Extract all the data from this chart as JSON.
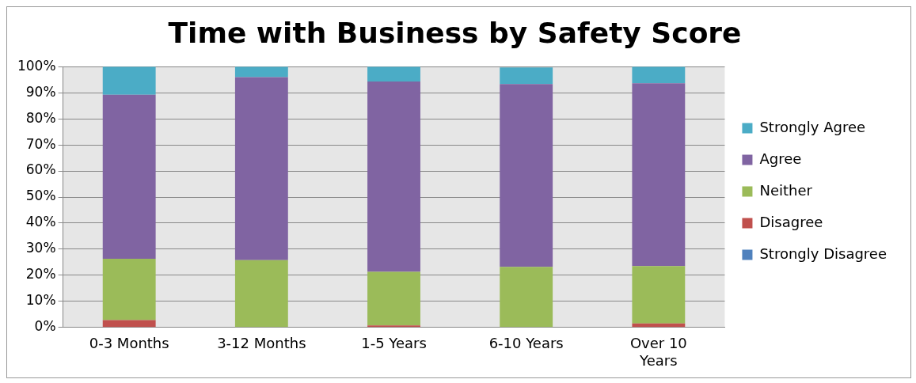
{
  "chart_data": {
    "type": "bar",
    "title": "Time with Business by Safety Score",
    "stacked": true,
    "categories": [
      "0-3 Months",
      "3-12 Months",
      "1-5 Years",
      "6-10 Years",
      "Over 10 Years"
    ],
    "series": [
      {
        "name": "Strongly Disagree",
        "color": "#4f81bd",
        "values": [
          0,
          0,
          0,
          0,
          0
        ]
      },
      {
        "name": "Disagree",
        "color": "#c0504d",
        "values": [
          2.8,
          0,
          0.8,
          null,
          1.5
        ]
      },
      {
        "name": "Neither",
        "color": "#9bbb59",
        "values": [
          23.5,
          25.8,
          20.5,
          23.2,
          22
        ]
      },
      {
        "name": "Agree",
        "color": "#8064a2",
        "values": [
          62.9,
          70.2,
          73,
          70.1,
          70.1
        ]
      },
      {
        "name": "Strongly Agree",
        "color": "#4bacc6",
        "values": [
          10.8,
          4,
          5.7,
          6.4,
          6.4
        ]
      }
    ],
    "ylim": [
      0,
      100
    ],
    "yticks": [
      {
        "value": 0,
        "label": "0%"
      },
      {
        "value": 10,
        "label": "10%"
      },
      {
        "value": 20,
        "label": "20%"
      },
      {
        "value": 30,
        "label": "30%"
      },
      {
        "value": 40,
        "label": "40%"
      },
      {
        "value": 50,
        "label": "50%"
      },
      {
        "value": 60,
        "label": "60%"
      },
      {
        "value": 70,
        "label": "70%"
      },
      {
        "value": 80,
        "label": "80%"
      },
      {
        "value": 90,
        "label": "90%"
      },
      {
        "value": 100,
        "label": "100%"
      }
    ],
    "grid": "y",
    "legend": "right"
  }
}
